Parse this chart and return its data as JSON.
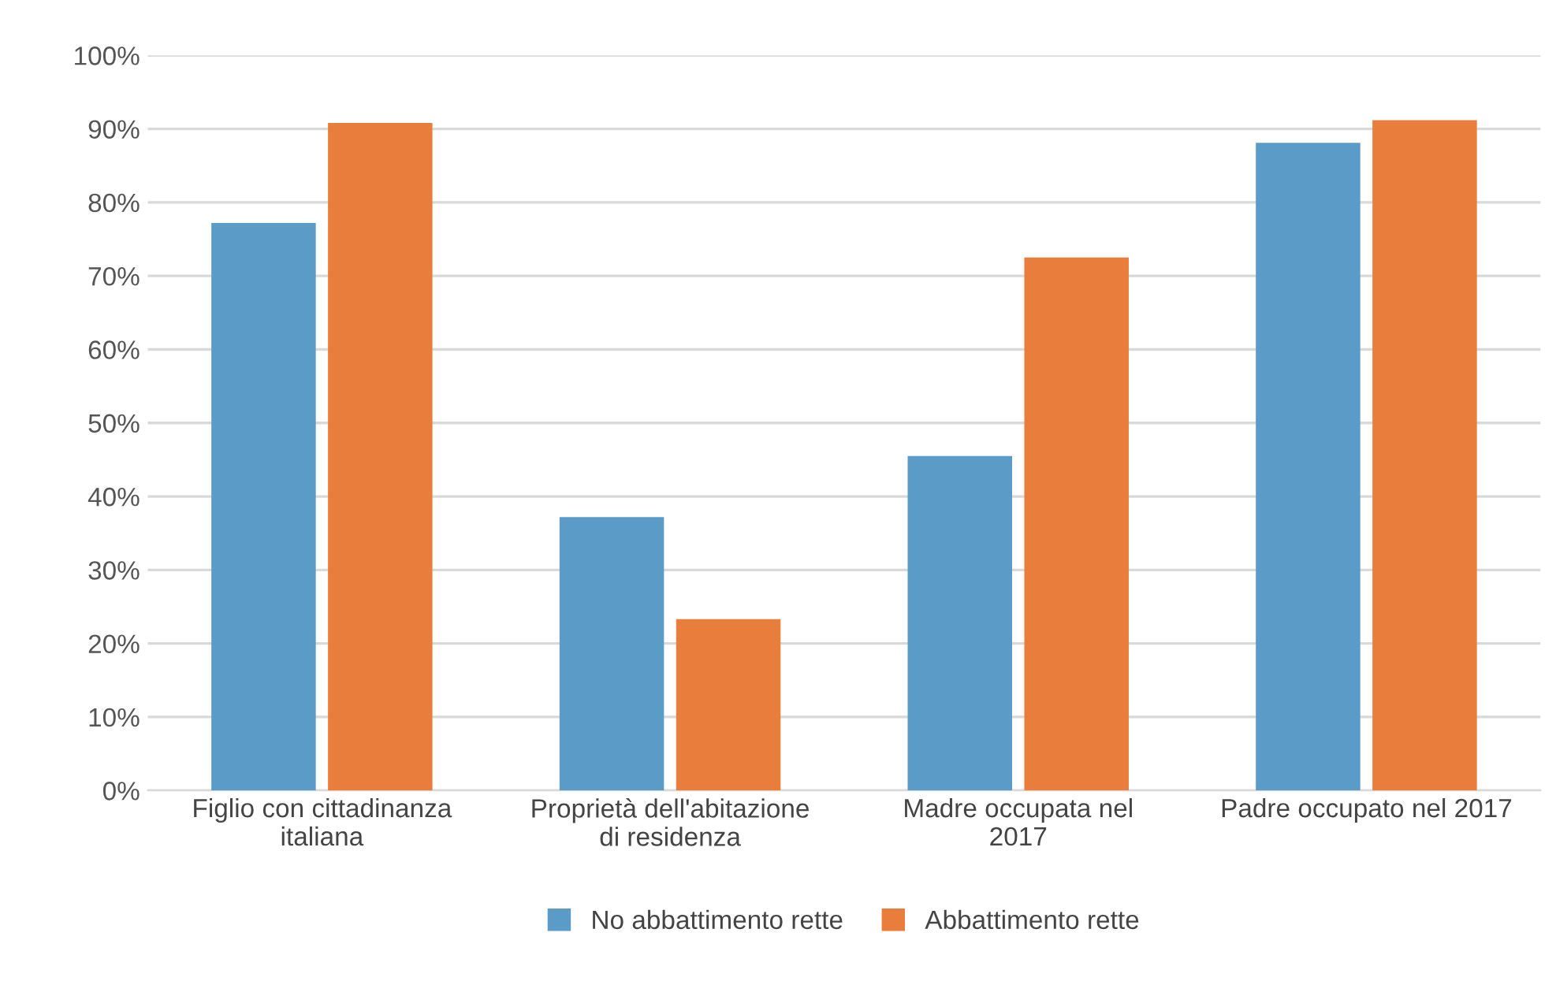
{
  "chart_data": {
    "type": "bar",
    "categories": [
      "Figlio con cittadinanza\nitaliana",
      "Proprietà dell'abitazione\ndi residenza",
      "Madre occupata nel\n2017",
      "Padre occupato nel 2017"
    ],
    "series": [
      {
        "name": "No abbattimento rette",
        "color": "#5b9bc8",
        "values": [
          77.2,
          37.2,
          45.5,
          88.1
        ]
      },
      {
        "name": "Abbattimento rette",
        "color": "#e97d3c",
        "values": [
          90.8,
          23.3,
          72.5,
          91.2
        ]
      }
    ],
    "ylim": [
      0,
      100
    ],
    "yticks": [
      {
        "value": 0,
        "label": "0%"
      },
      {
        "value": 10,
        "label": "10%"
      },
      {
        "value": 20,
        "label": "20%"
      },
      {
        "value": 30,
        "label": "30%"
      },
      {
        "value": 40,
        "label": "40%"
      },
      {
        "value": 50,
        "label": "50%"
      },
      {
        "value": 60,
        "label": "60%"
      },
      {
        "value": 70,
        "label": "70%"
      },
      {
        "value": 80,
        "label": "80%"
      },
      {
        "value": 90,
        "label": "90%"
      },
      {
        "value": 100,
        "label": "100%"
      }
    ],
    "grid": "y",
    "legend": "bottom"
  }
}
